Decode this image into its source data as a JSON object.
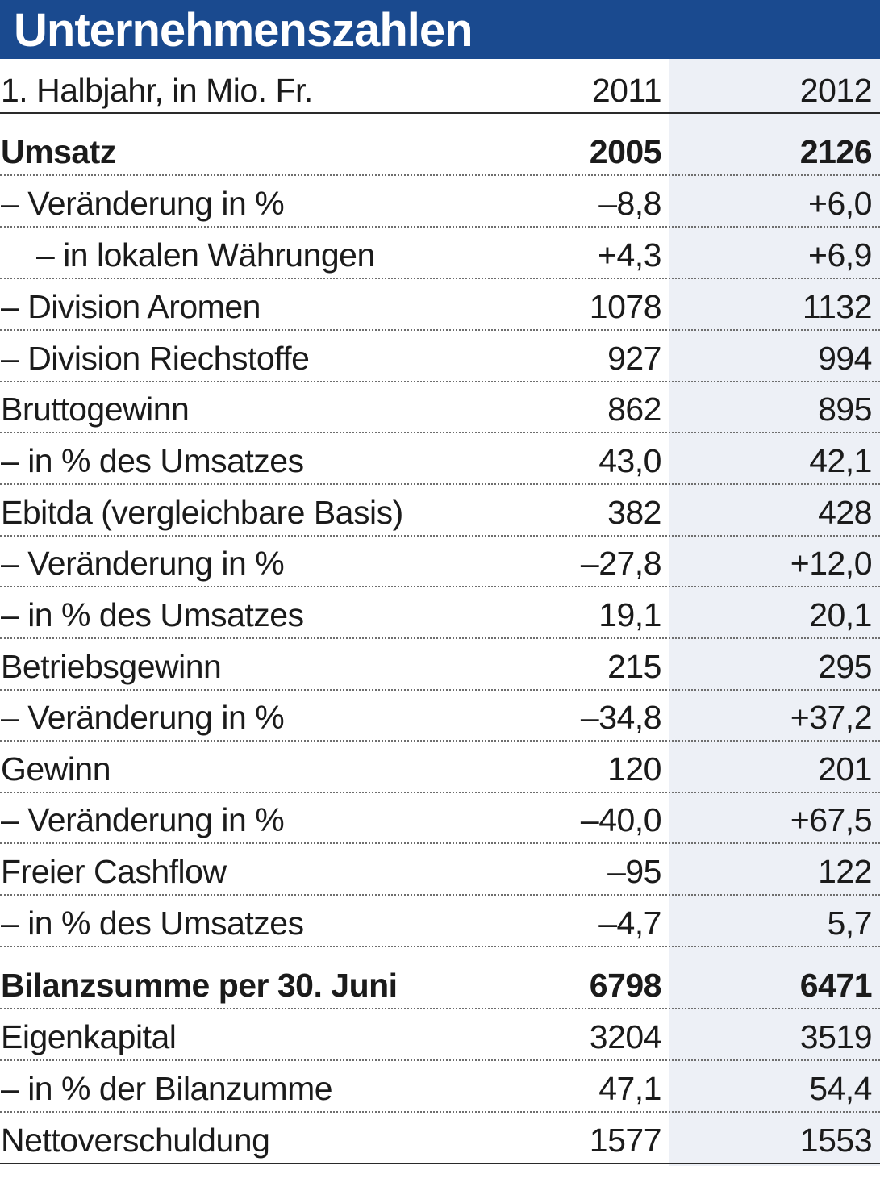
{
  "title": "Unternehmenszahlen",
  "header": {
    "label": "1. Halbjahr, in Mio. Fr.",
    "col_2011": "2011",
    "col_2012": "2012"
  },
  "colors": {
    "title_bar": "#1a4a8f",
    "title_text": "#ffffff",
    "shaded_column": "#edf0f6"
  },
  "rows": [
    {
      "label": "Umsatz",
      "v2011": "2005",
      "v2012": "2126",
      "bold": true
    },
    {
      "label": "– Veränderung in %",
      "v2011": "–8,8",
      "v2012": "+6,0"
    },
    {
      "label": "– in lokalen Währungen",
      "v2011": "+4,3",
      "v2012": "+6,9",
      "indent": true
    },
    {
      "label": "– Division Aromen",
      "v2011": "1078",
      "v2012": "1132"
    },
    {
      "label": "– Division Riechstoffe",
      "v2011": "927",
      "v2012": "994"
    },
    {
      "label": "Bruttogewinn",
      "v2011": "862",
      "v2012": "895"
    },
    {
      "label": "– in % des Umsatzes",
      "v2011": "43,0",
      "v2012": "42,1"
    },
    {
      "label": "Ebitda (vergleichbare Basis)",
      "v2011": "382",
      "v2012": "428"
    },
    {
      "label": "– Veränderung in %",
      "v2011": "–27,8",
      "v2012": "+12,0"
    },
    {
      "label": "– in % des Umsatzes",
      "v2011": "19,1",
      "v2012": "20,1"
    },
    {
      "label": "Betriebsgewinn",
      "v2011": "215",
      "v2012": "295"
    },
    {
      "label": "– Veränderung in %",
      "v2011": "–34,8",
      "v2012": "+37,2"
    },
    {
      "label": "Gewinn",
      "v2011": "120",
      "v2012": "201"
    },
    {
      "label": "– Veränderung in %",
      "v2011": "–40,0",
      "v2012": "+67,5"
    },
    {
      "label": "Freier Cashflow",
      "v2011": "–95",
      "v2012": "122"
    },
    {
      "label": "– in % des Umsatzes",
      "v2011": "–4,7",
      "v2012": "5,7"
    },
    {
      "label": "Bilanzsumme per 30. Juni",
      "v2011": "6798",
      "v2012": "6471",
      "bold": true
    },
    {
      "label": "Eigenkapital",
      "v2011": "3204",
      "v2012": "3519"
    },
    {
      "label": "– in % der Bilanzumme",
      "v2011": "47,1",
      "v2012": "54,4"
    },
    {
      "label": "Nettoverschuldung",
      "v2011": "1577",
      "v2012": "1553"
    }
  ]
}
